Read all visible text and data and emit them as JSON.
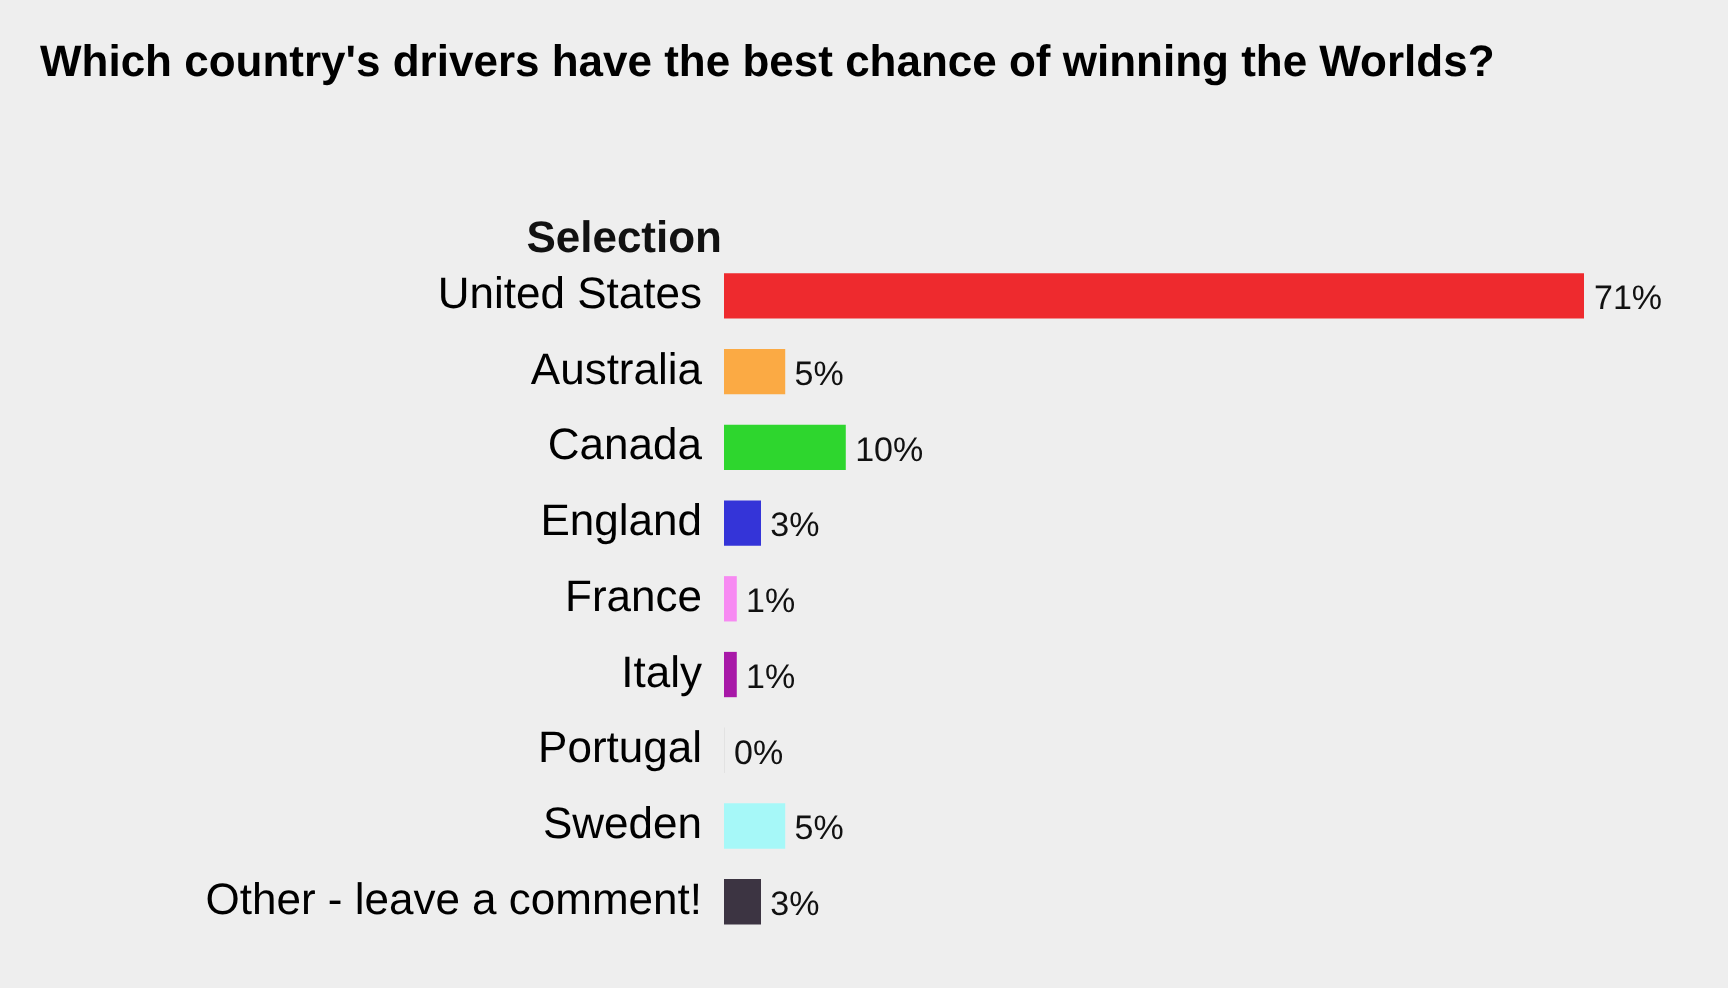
{
  "chart_data": {
    "type": "bar",
    "orientation": "horizontal",
    "title": "Which country's drivers have the best chance of winning the Worlds?",
    "ylabel": "Selection",
    "categories": [
      "United States",
      "Australia",
      "Canada",
      "England",
      "France",
      "Italy",
      "Portugal",
      "Sweden",
      "Other - leave a comment!"
    ],
    "values": [
      71,
      5,
      10,
      3,
      1,
      1,
      0,
      5,
      3
    ],
    "colors": [
      "#ee2a2e",
      "#fbaa44",
      "#2ed62e",
      "#3434d8",
      "#f78af2",
      "#a818a8",
      "#dcdcdc",
      "#a6f8f8",
      "#3c3442"
    ],
    "value_labels": [
      "71%",
      "5%",
      "10%",
      "3%",
      "1%",
      "1%",
      "0%",
      "5%",
      "3%"
    ],
    "legend": false
  }
}
